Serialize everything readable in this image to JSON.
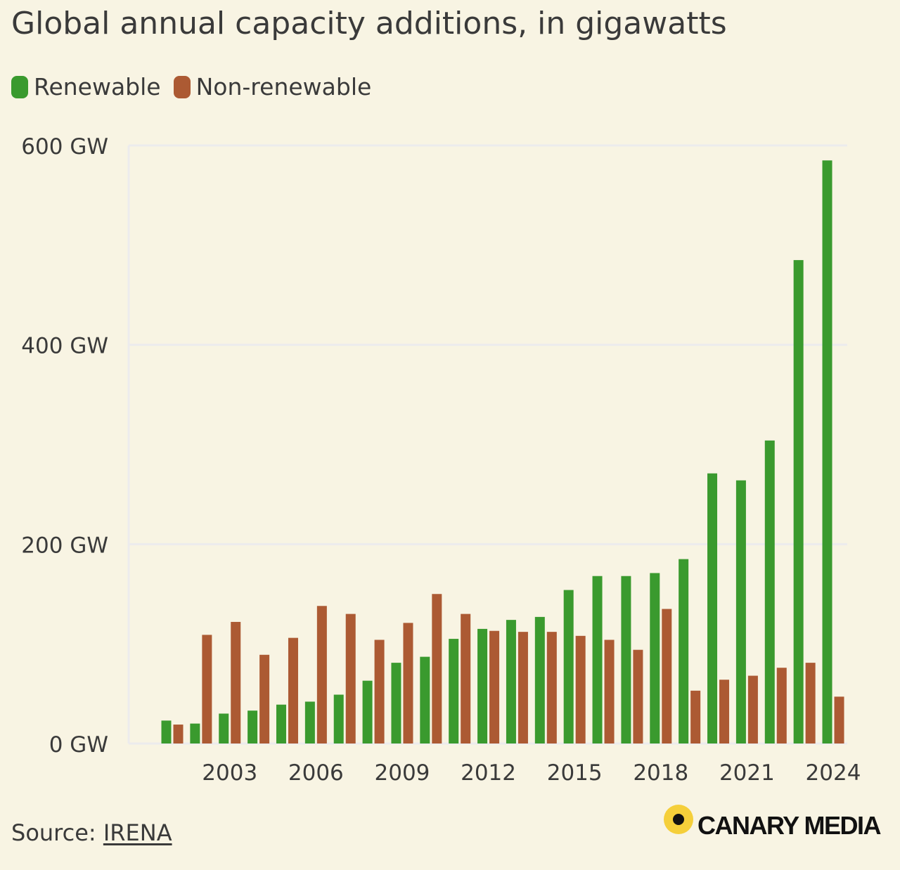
{
  "colors": {
    "background": "#f8f4e3",
    "renewable": "#3a9a2e",
    "non_renewable": "#ac5a33",
    "gridline": "#ecebed",
    "text": "#3a3a3a"
  },
  "chart_data": {
    "type": "bar",
    "title": "Global annual capacity additions, in gigawatts",
    "legend_position": "top-left",
    "grid": true,
    "years": [
      2001,
      2002,
      2003,
      2004,
      2005,
      2006,
      2007,
      2008,
      2009,
      2010,
      2011,
      2012,
      2013,
      2014,
      2015,
      2016,
      2017,
      2018,
      2019,
      2020,
      2021,
      2022,
      2023,
      2024
    ],
    "x_tick_labels": [
      "2003",
      "2006",
      "2009",
      "2012",
      "2015",
      "2018",
      "2021",
      "2024"
    ],
    "y_ticks": [
      0,
      200,
      400,
      600
    ],
    "y_tick_labels": [
      "0 GW",
      "200 GW",
      "400 GW",
      "600 GW"
    ],
    "ylim": [
      0,
      600
    ],
    "unit": "GW",
    "series": [
      {
        "name": "Renewable",
        "color": "#3a9a2e",
        "values": [
          23,
          20,
          30,
          33,
          39,
          42,
          49,
          63,
          81,
          87,
          105,
          115,
          124,
          127,
          154,
          168,
          168,
          171,
          185,
          271,
          264,
          304,
          485,
          585
        ]
      },
      {
        "name": "Non-renewable",
        "color": "#ac5a33",
        "values": [
          19,
          109,
          122,
          89,
          106,
          138,
          130,
          104,
          121,
          150,
          130,
          113,
          112,
          112,
          108,
          104,
          94,
          135,
          53,
          64,
          68,
          76,
          81,
          47
        ]
      }
    ]
  },
  "footer": {
    "source_prefix": "Source: ",
    "source_link": "IRENA",
    "brand": "CANARY MEDIA"
  }
}
